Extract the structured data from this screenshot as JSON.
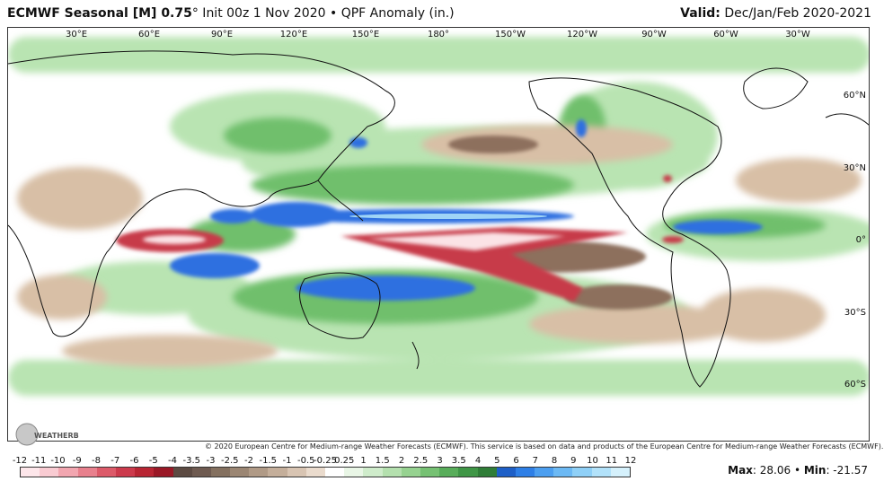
{
  "header": {
    "model": "ECMWF Seasonal [M] 0.75",
    "degree": "°",
    "init": " Init 00z 1 Nov 2020",
    "bullet": " • ",
    "product": "QPF Anomaly (in.)",
    "valid_label": "Valid:",
    "valid_value": " Dec/Jan/Feb 2020-2021"
  },
  "longitudes": [
    "30°E",
    "60°E",
    "90°E",
    "120°E",
    "150°E",
    "180°",
    "150°W",
    "120°W",
    "90°W",
    "60°W",
    "30°W"
  ],
  "latitudes": [
    "60°N",
    "30°N",
    "0°",
    "30°S",
    "60°S"
  ],
  "copyright": "© 2020 European Centre for Medium-range Weather Forecasts (ECMWF). This service is based on data and products of the European Centre for Medium-range Weather Forecasts (ECMWF).",
  "logo_text": "WEATHERBELL",
  "colorbar": {
    "ticks": [
      "-12",
      "-11",
      "-10",
      "-9",
      "-8",
      "-7",
      "-6",
      "-5",
      "-4",
      "-3.5",
      "-3",
      "-2.5",
      "-2",
      "-1.5",
      "-1",
      "-0.5",
      "-0.25",
      "0.25",
      "1",
      "1.5",
      "2",
      "2.5",
      "3",
      "3.5",
      "4",
      "5",
      "6",
      "7",
      "8",
      "9",
      "10",
      "11",
      "12"
    ],
    "colors": [
      "#fde6ea",
      "#f9cbd2",
      "#f2a6b0",
      "#e8808d",
      "#dc5a69",
      "#cc3a4c",
      "#b82533",
      "#9a1826",
      "#5c4a42",
      "#6e5a50",
      "#84705f",
      "#9b8673",
      "#b09a86",
      "#c4ae9a",
      "#d8c4b2",
      "#eadbcd",
      "#ffffff",
      "#e9f6e6",
      "#cfeccb",
      "#b4e0ae",
      "#96d290",
      "#76c173",
      "#58ad5a",
      "#3f9646",
      "#2f7d37",
      "#1e5fc7",
      "#2e7fe6",
      "#4c9ff0",
      "#6cb9f4",
      "#8fd0f7",
      "#b2e2fa",
      "#d5f1fc"
    ]
  },
  "stats": {
    "max_label": "Max",
    "max_value": ": 28.06",
    "sep": " • ",
    "min_label": "Min",
    "min_value": ": -21.57"
  }
}
